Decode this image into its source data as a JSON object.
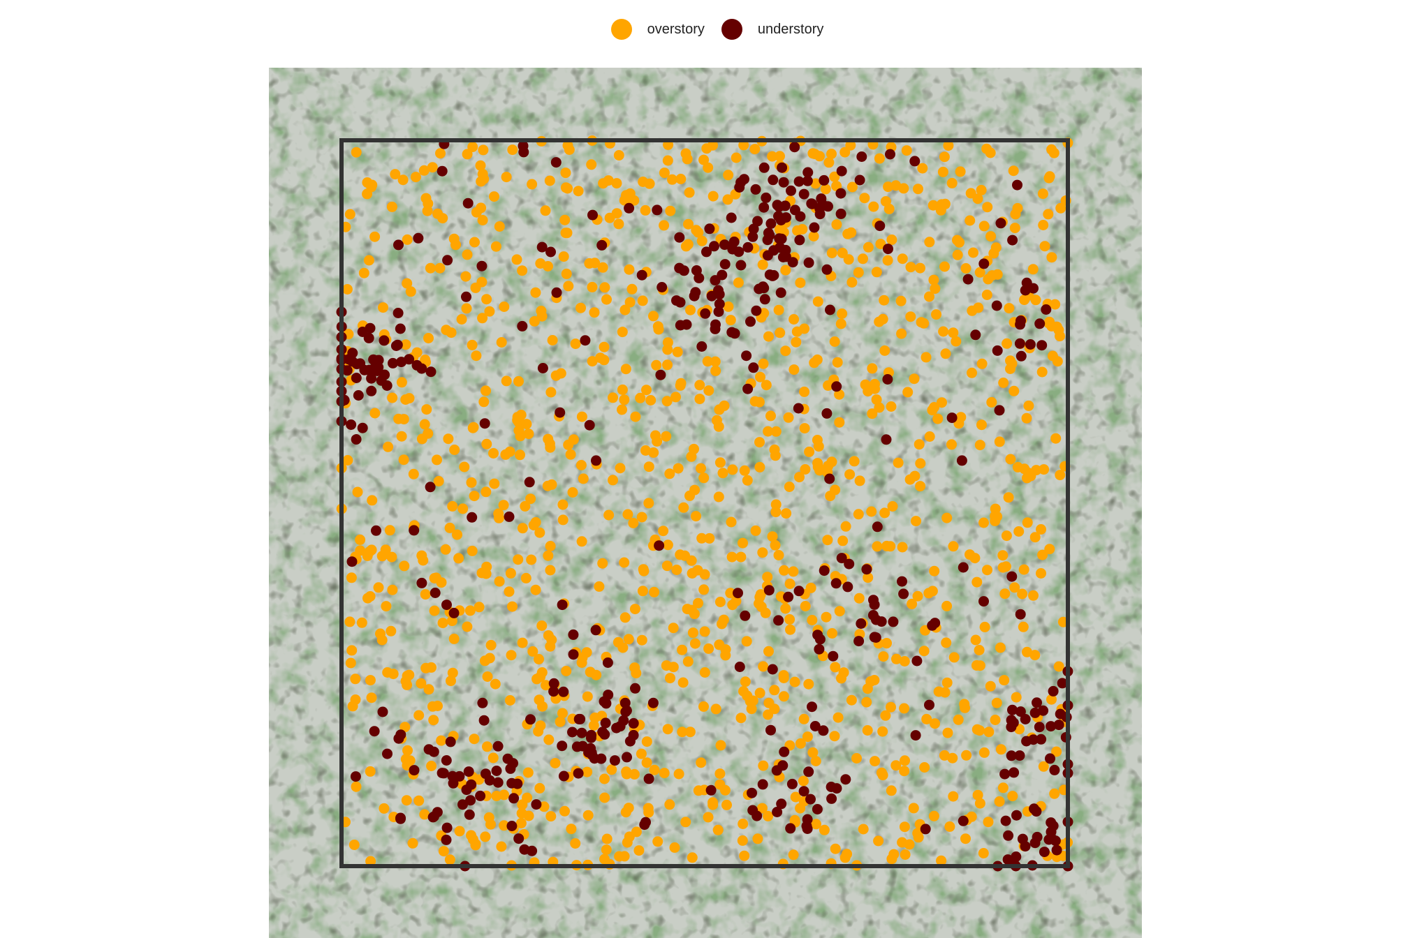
{
  "chart_data": {
    "type": "scatter",
    "title": "",
    "xlabel": "",
    "ylabel": "",
    "background": "aerial orthophoto of forest canopy",
    "plot_boundary": {
      "shape": "square",
      "color": "#333333"
    },
    "legend": {
      "placement": "top-center",
      "items": [
        {
          "label": "overstory",
          "color": "#FFA500"
        },
        {
          "label": "understory",
          "color": "#650000"
        }
      ]
    },
    "series": [
      {
        "name": "overstory",
        "color": "#FFA500",
        "approx_count": 1150,
        "distribution": "scattered across the entire plot, densest along the right and top-center"
      },
      {
        "name": "understory",
        "color": "#650000",
        "approx_count": 450,
        "distribution": "clustered; large clusters at upper-center, left edge, lower-left and lower-right corner"
      }
    ]
  }
}
